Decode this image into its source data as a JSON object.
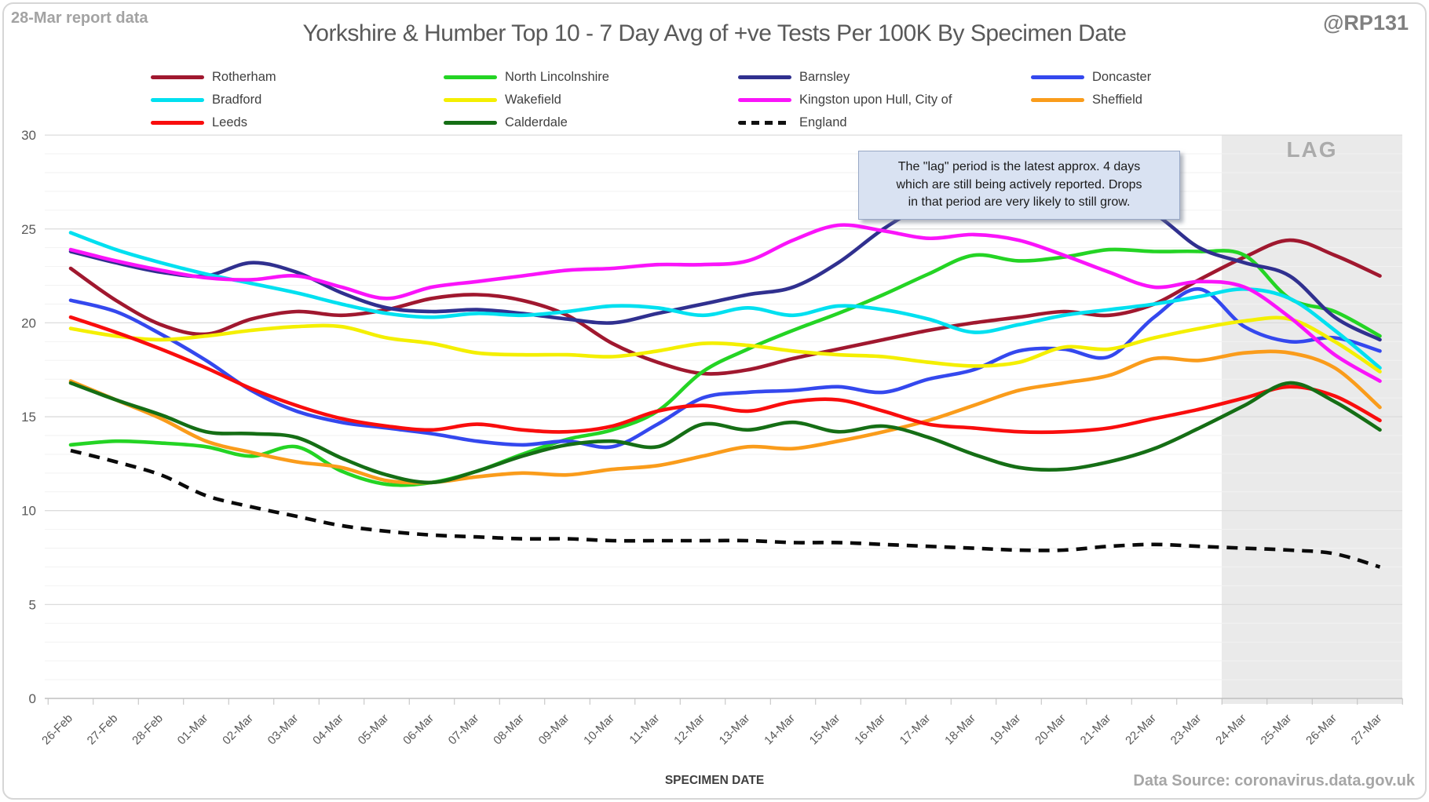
{
  "report_label": "28-Mar report data",
  "title": "Yorkshire & Humber Top 10 - 7 Day Avg of +ve Tests Per 100K By Specimen Date",
  "handle": "@RP131",
  "xaxis_title": "SPECIMEN DATE",
  "footer": "Data Source: coronavirus.data.gov.uk",
  "annotation": {
    "lines": [
      "The \"lag\" period is the latest approx. 4 days",
      "which are still being actively reported.  Drops",
      "in that period are very likely to still grow."
    ]
  },
  "chart_data": {
    "type": "line",
    "title": "Yorkshire & Humber Top 10 - 7 Day Avg of +ve Tests Per 100K By Specimen Date",
    "xlabel": "SPECIMEN DATE",
    "ylabel": "",
    "ylim": [
      0,
      30
    ],
    "yticks": [
      0,
      5,
      10,
      15,
      20,
      25,
      30
    ],
    "grid": "horizontal, minor every 1 (light), major every 5 (darker)",
    "legend_position": "top",
    "lag_band": {
      "label": "LAG",
      "covers": "24-Mar to 27-Mar (approx. latest 4 days)"
    },
    "x": [
      "26-Feb",
      "27-Feb",
      "28-Feb",
      "01-Mar",
      "02-Mar",
      "03-Mar",
      "04-Mar",
      "05-Mar",
      "06-Mar",
      "07-Mar",
      "08-Mar",
      "09-Mar",
      "10-Mar",
      "11-Mar",
      "12-Mar",
      "13-Mar",
      "14-Mar",
      "15-Mar",
      "16-Mar",
      "17-Mar",
      "18-Mar",
      "19-Mar",
      "20-Mar",
      "21-Mar",
      "22-Mar",
      "23-Mar",
      "24-Mar",
      "25-Mar",
      "26-Mar",
      "27-Mar"
    ],
    "series": [
      {
        "name": "Rotherham",
        "color": "#A0182F",
        "dashed": false,
        "values": [
          22.9,
          21.2,
          19.9,
          19.4,
          20.2,
          20.6,
          20.4,
          20.7,
          21.3,
          21.5,
          21.2,
          20.4,
          18.9,
          17.9,
          17.3,
          17.5,
          18.1,
          18.6,
          19.1,
          19.6,
          20.0,
          20.3,
          20.6,
          20.4,
          21.0,
          22.3,
          23.5,
          24.4,
          23.6,
          22.5
        ]
      },
      {
        "name": "North Lincolnshire",
        "color": "#24D424",
        "dashed": false,
        "values": [
          13.5,
          13.7,
          13.6,
          13.4,
          12.9,
          13.4,
          12.1,
          11.4,
          11.5,
          12.1,
          13.0,
          13.8,
          14.3,
          15.3,
          17.4,
          18.6,
          19.6,
          20.5,
          21.5,
          22.6,
          23.6,
          23.3,
          23.5,
          23.9,
          23.8,
          23.8,
          23.6,
          21.3,
          20.6,
          19.3
        ]
      },
      {
        "name": "Barnsley",
        "color": "#30308F",
        "dashed": false,
        "values": [
          23.8,
          23.2,
          22.7,
          22.5,
          23.2,
          22.7,
          21.6,
          20.8,
          20.6,
          20.7,
          20.5,
          20.2,
          20.0,
          20.5,
          21.0,
          21.5,
          21.9,
          23.2,
          25.0,
          26.4,
          27.3,
          27.6,
          27.4,
          26.6,
          25.8,
          24.0,
          23.2,
          22.5,
          20.3,
          19.1
        ]
      },
      {
        "name": "Doncaster",
        "color": "#3448EE",
        "dashed": false,
        "values": [
          21.2,
          20.6,
          19.4,
          18.0,
          16.4,
          15.3,
          14.7,
          14.4,
          14.1,
          13.7,
          13.5,
          13.7,
          13.4,
          14.6,
          16.0,
          16.3,
          16.4,
          16.6,
          16.3,
          17.0,
          17.5,
          18.5,
          18.6,
          18.2,
          20.3,
          21.8,
          19.8,
          19.0,
          19.2,
          18.5
        ]
      },
      {
        "name": "Bradford",
        "color": "#00E0F0",
        "dashed": false,
        "values": [
          24.8,
          23.9,
          23.2,
          22.6,
          22.1,
          21.6,
          21.0,
          20.5,
          20.3,
          20.5,
          20.4,
          20.6,
          20.9,
          20.8,
          20.4,
          20.8,
          20.4,
          20.9,
          20.7,
          20.2,
          19.5,
          19.9,
          20.4,
          20.7,
          21.0,
          21.4,
          21.8,
          21.3,
          19.6,
          17.6
        ]
      },
      {
        "name": "Wakefield",
        "color": "#F4EF00",
        "dashed": false,
        "values": [
          19.7,
          19.3,
          19.1,
          19.3,
          19.6,
          19.8,
          19.8,
          19.2,
          18.9,
          18.4,
          18.3,
          18.3,
          18.2,
          18.5,
          18.9,
          18.8,
          18.5,
          18.3,
          18.2,
          17.9,
          17.7,
          17.9,
          18.7,
          18.6,
          19.2,
          19.7,
          20.1,
          20.2,
          19.0,
          17.4
        ]
      },
      {
        "name": "Kingston upon Hull, City of",
        "color": "#FA14FA",
        "dashed": false,
        "values": [
          23.9,
          23.3,
          22.8,
          22.4,
          22.3,
          22.5,
          21.9,
          21.3,
          21.9,
          22.2,
          22.5,
          22.8,
          22.9,
          23.1,
          23.1,
          23.3,
          24.4,
          25.2,
          24.9,
          24.5,
          24.7,
          24.4,
          23.6,
          22.7,
          21.9,
          22.2,
          21.9,
          20.3,
          18.3,
          16.9
        ]
      },
      {
        "name": "Sheffield",
        "color": "#FA9C1B",
        "dashed": false,
        "values": [
          16.9,
          15.9,
          14.9,
          13.7,
          13.1,
          12.6,
          12.3,
          11.6,
          11.5,
          11.8,
          12.0,
          11.9,
          12.2,
          12.4,
          12.9,
          13.4,
          13.3,
          13.7,
          14.2,
          14.8,
          15.6,
          16.4,
          16.8,
          17.2,
          18.1,
          18.0,
          18.4,
          18.4,
          17.6,
          15.5
        ]
      },
      {
        "name": "Leeds",
        "color": "#F90D0D",
        "dashed": false,
        "values": [
          20.3,
          19.5,
          18.6,
          17.6,
          16.5,
          15.6,
          14.9,
          14.5,
          14.3,
          14.6,
          14.3,
          14.2,
          14.5,
          15.3,
          15.6,
          15.3,
          15.8,
          15.9,
          15.3,
          14.6,
          14.4,
          14.2,
          14.2,
          14.4,
          14.9,
          15.4,
          16.0,
          16.6,
          16.1,
          14.8
        ]
      },
      {
        "name": "Calderdale",
        "color": "#156E15",
        "dashed": false,
        "values": [
          16.8,
          15.9,
          15.1,
          14.2,
          14.1,
          13.9,
          12.8,
          11.9,
          11.5,
          12.1,
          12.9,
          13.5,
          13.7,
          13.4,
          14.6,
          14.3,
          14.7,
          14.2,
          14.5,
          13.9,
          13.0,
          12.3,
          12.2,
          12.6,
          13.3,
          14.4,
          15.6,
          16.8,
          15.8,
          14.3
        ]
      },
      {
        "name": "England",
        "color": "#0A0A0A",
        "dashed": true,
        "values": [
          13.2,
          12.6,
          11.9,
          10.8,
          10.2,
          9.7,
          9.2,
          8.9,
          8.7,
          8.6,
          8.5,
          8.5,
          8.4,
          8.4,
          8.4,
          8.4,
          8.3,
          8.3,
          8.2,
          8.1,
          8.0,
          7.9,
          7.9,
          8.1,
          8.2,
          8.1,
          8.0,
          7.9,
          7.7,
          7.0
        ]
      }
    ]
  }
}
